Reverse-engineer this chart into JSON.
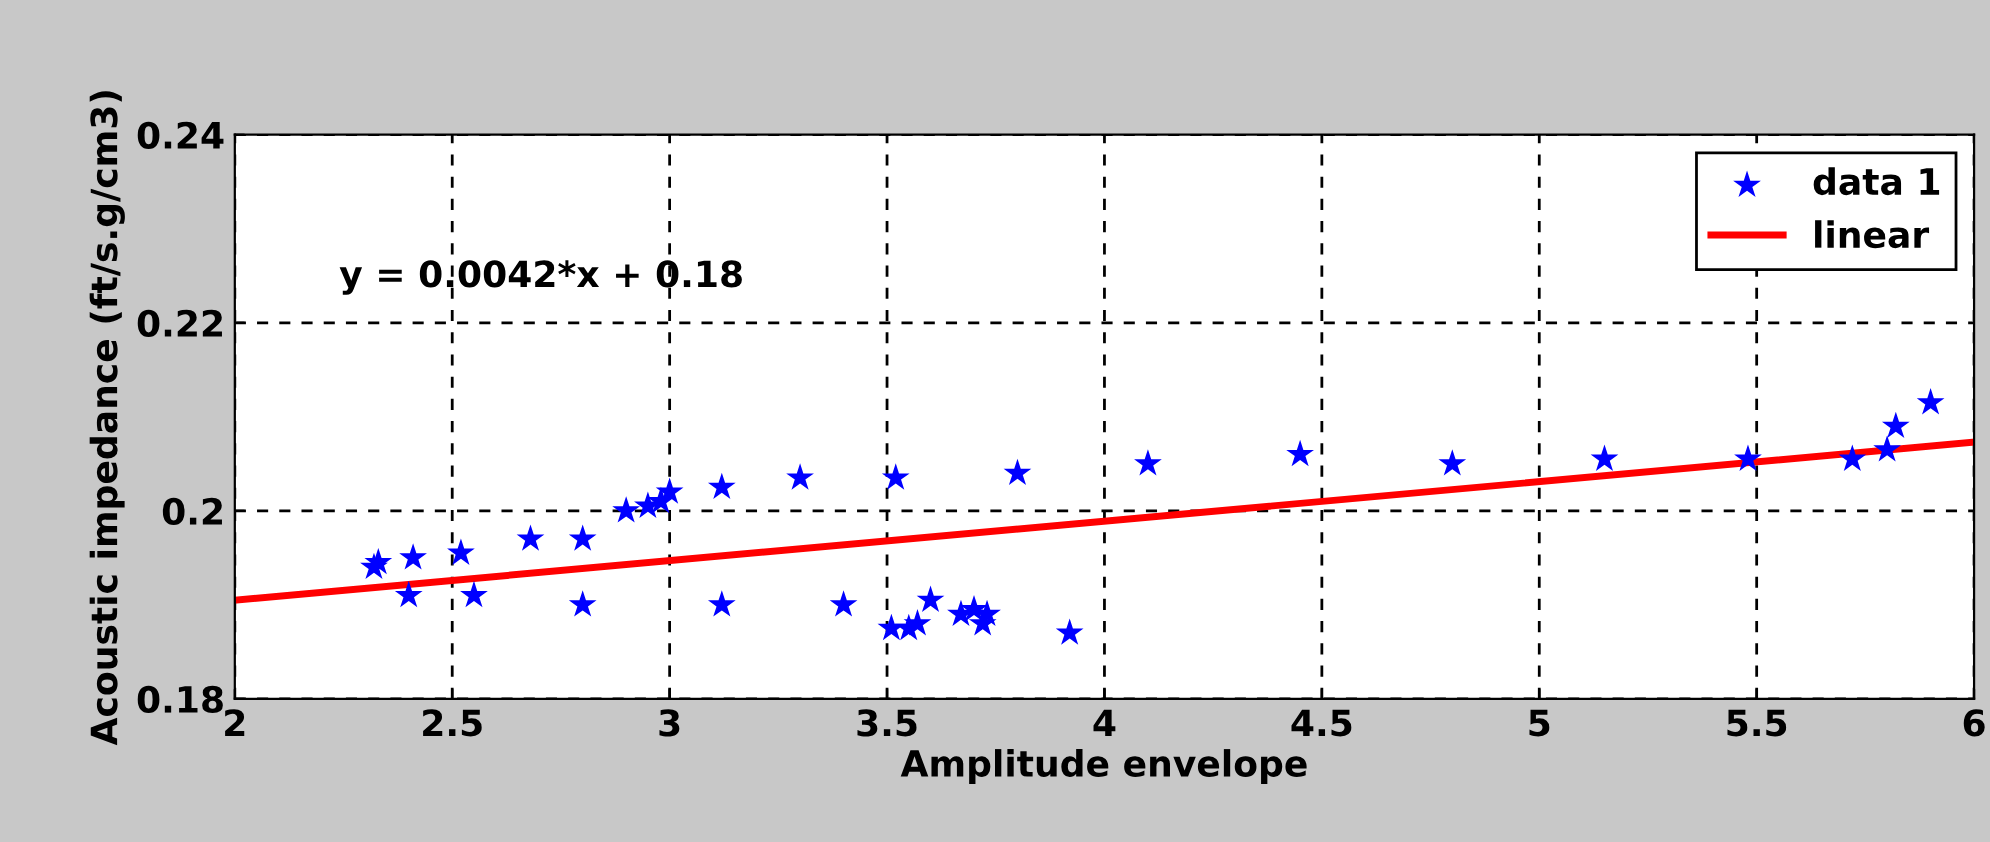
{
  "chart_data": {
    "type": "scatter",
    "xlabel": "Amplitude envelope",
    "ylabel": "Acoustic impedance (ft/s.g/cm3)",
    "xlim": [
      2,
      6
    ],
    "xticks": [
      2,
      2.5,
      3,
      3.5,
      4,
      4.5,
      5,
      5.5,
      6
    ],
    "ylim": [
      0.18,
      0.24
    ],
    "yticks": [
      0.18,
      0.2,
      0.22,
      0.24
    ],
    "grid": true,
    "legend": "top right",
    "annotations": [
      "y = 0.0042*x + 0.18"
    ],
    "series": [
      {
        "name": "data 1",
        "marker": "star",
        "color": "#0000ff",
        "x": [
          2.32,
          2.33,
          2.4,
          2.41,
          2.52,
          2.55,
          2.68,
          2.8,
          2.8,
          2.9,
          2.95,
          2.98,
          3.0,
          3.12,
          3.12,
          3.3,
          3.4,
          3.51,
          3.52,
          3.55,
          3.57,
          3.6,
          3.67,
          3.7,
          3.72,
          3.73,
          3.8,
          3.92,
          4.1,
          4.45,
          4.8,
          5.15,
          5.48,
          5.72,
          5.8,
          5.82,
          5.9
        ],
        "values": [
          0.194,
          0.1945,
          0.191,
          0.195,
          0.1955,
          0.191,
          0.197,
          0.197,
          0.19,
          0.2,
          0.2005,
          0.201,
          0.202,
          0.2025,
          0.19,
          0.2035,
          0.19,
          0.1875,
          0.2035,
          0.1875,
          0.188,
          0.1905,
          0.189,
          0.1895,
          0.188,
          0.189,
          0.204,
          0.187,
          0.205,
          0.206,
          0.205,
          0.2055,
          0.2055,
          0.2055,
          0.2065,
          0.209,
          0.2115
        ]
      },
      {
        "name": "linear",
        "type": "line",
        "line_style": "solid",
        "color": "#ff0000",
        "x": [
          2,
          6
        ],
        "values": [
          0.1905,
          0.2073
        ]
      }
    ]
  }
}
